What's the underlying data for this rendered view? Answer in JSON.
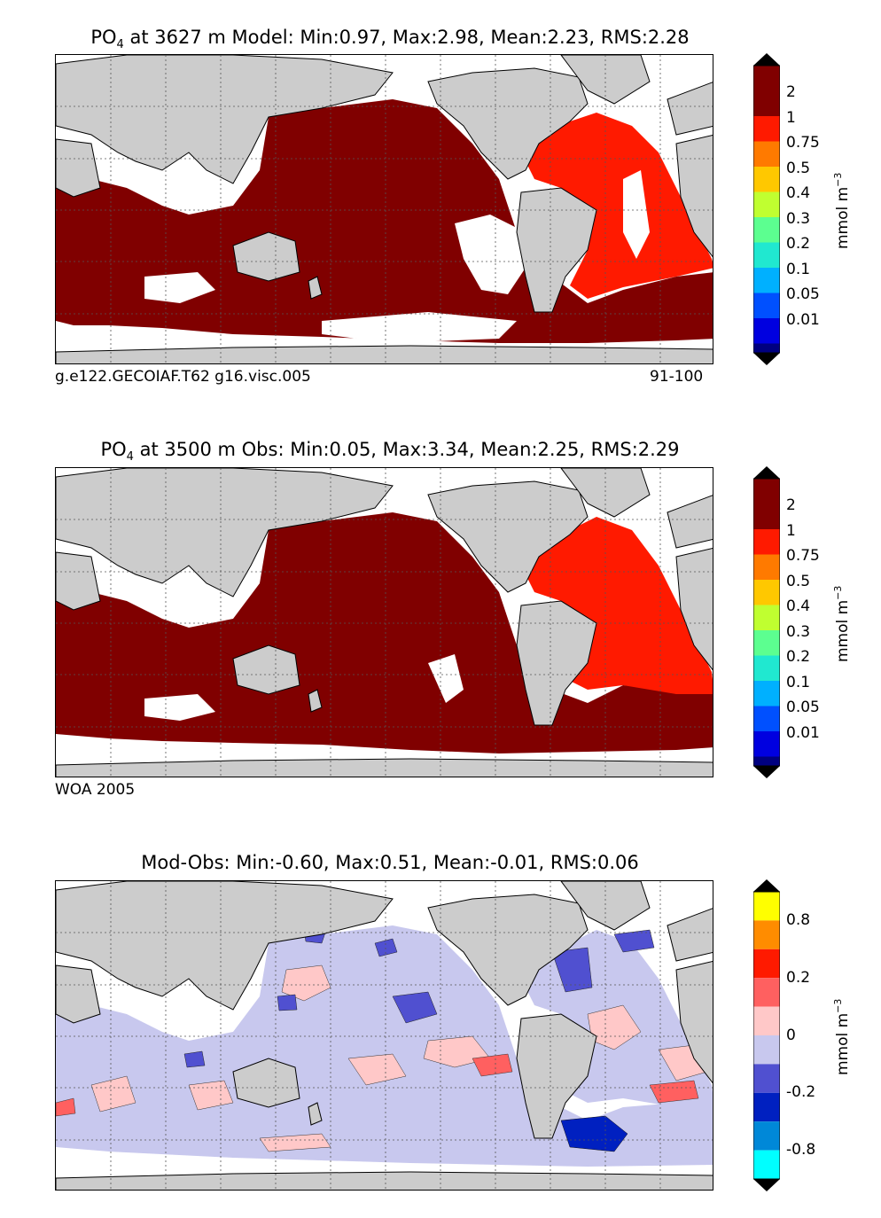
{
  "panels": [
    {
      "id": "model",
      "title_prefix": "PO",
      "title_sub": "4",
      "title_rest": " at 3627 m Model: Min:0.97, Max:2.98, Mean:2.23, RMS:2.28",
      "footer_left": "g.e122.GECOIAF.T62 g16.visc.005",
      "footer_right": "91-100",
      "colorbar": {
        "unit": "mmol m",
        "unit_sup": "−3",
        "labels": [
          "2",
          "1",
          "0.75",
          "0.5",
          "0.4",
          "0.3",
          "0.2",
          "0.1",
          "0.05",
          "0.01"
        ],
        "colors": [
          "#800000",
          "#ff1a00",
          "#ff7a00",
          "#ffc800",
          "#c0ff30",
          "#5cff90",
          "#20e8d0",
          "#00b0ff",
          "#0050ff",
          "#0000e0",
          "#000080"
        ]
      }
    },
    {
      "id": "obs",
      "title_prefix": "PO",
      "title_sub": "4",
      "title_rest": " at 3500 m Obs: Min:0.05, Max:3.34, Mean:2.25, RMS:2.29",
      "footer_left": "WOA 2005",
      "footer_right": "",
      "colorbar": {
        "unit": "mmol m",
        "unit_sup": "−3",
        "labels": [
          "2",
          "1",
          "0.75",
          "0.5",
          "0.4",
          "0.3",
          "0.2",
          "0.1",
          "0.05",
          "0.01"
        ],
        "colors": [
          "#800000",
          "#ff1a00",
          "#ff7a00",
          "#ffc800",
          "#c0ff30",
          "#5cff90",
          "#20e8d0",
          "#00b0ff",
          "#0050ff",
          "#0000e0",
          "#000080"
        ]
      }
    },
    {
      "id": "diff",
      "title_prefix": "",
      "title_sub": "",
      "title_rest": "Mod-Obs: Min:-0.60, Max:0.51, Mean:-0.01, RMS:0.06",
      "footer_left": "",
      "footer_right": "",
      "colorbar": {
        "unit": "mmol m",
        "unit_sup": "−3",
        "labels": [
          "0.8",
          "0.2",
          "0",
          "-0.2",
          "-0.8"
        ],
        "colors": [
          "#ffff00",
          "#ff8c00",
          "#ff1a00",
          "#ff6060",
          "#ffc8c8",
          "#c8c8ee",
          "#5050d0",
          "#0020c0",
          "#0088d8",
          "#00ffff"
        ]
      }
    }
  ],
  "map_colors": {
    "land": "#cccccc",
    "deep_pacific_indian": "#800000",
    "atlantic": "#ff1a00",
    "nodata": "#ffffff",
    "diff_neg": "#c8c8ee",
    "diff_pos": "#ffc8c8"
  }
}
